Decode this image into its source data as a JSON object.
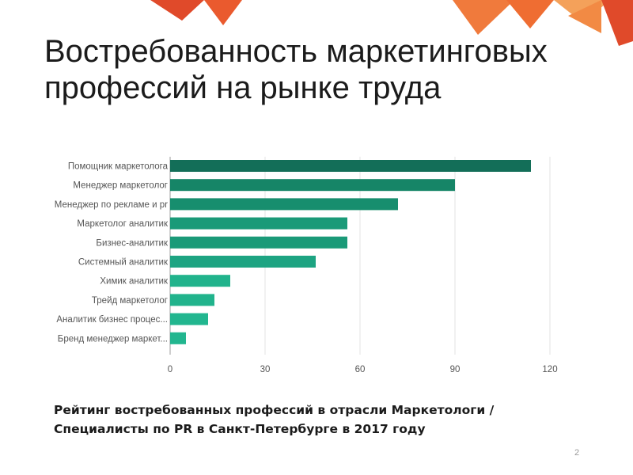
{
  "slide": {
    "title": "Востребованность маркетинговых профессий на рынке труда",
    "caption": "Рейтинг востребованных профессий в отрасли Маркетологи / Специалисты по PR в Санкт-Петербурге в 2017 году",
    "page_number": "2",
    "colors": {
      "decoration_dark": "#e04a2a",
      "decoration_light": "#f07a3c",
      "decoration_pale": "#f4a15a"
    }
  },
  "chart_data": {
    "type": "bar",
    "orientation": "horizontal",
    "categories": [
      "Помощник маркетолога",
      "Менеджер маркетолог",
      "Менеджер по рекламе и pr",
      "Маркетолог аналитик",
      "Бизнес-аналитик",
      "Системный аналитик",
      "Химик аналитик",
      "Трейд маркетолог",
      "Аналитик бизнес процес...",
      "Бренд менеджер маркет..."
    ],
    "values": [
      114,
      90,
      72,
      56,
      56,
      46,
      19,
      14,
      12,
      5
    ],
    "colors": [
      "#136e58",
      "#168567",
      "#178e6e",
      "#1a9a78",
      "#1a9a78",
      "#1da482",
      "#21b38c",
      "#21b38c",
      "#22b68f",
      "#22b68f"
    ],
    "xlim": [
      0,
      120
    ],
    "x_ticks": [
      0,
      30,
      60,
      90,
      120
    ],
    "grid": true,
    "legend": "none"
  }
}
